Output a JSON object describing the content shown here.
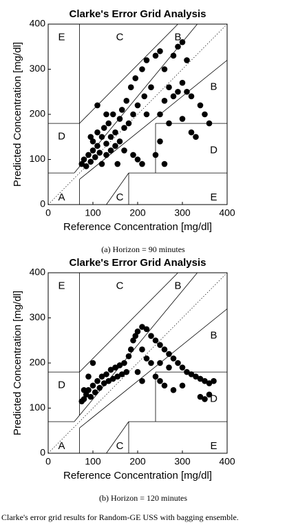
{
  "chart_data": [
    {
      "type": "scatter",
      "title": "Clarke's Error Grid Analysis",
      "x_label": "Reference Concentration [mg/dl]",
      "y_label": "Predicted Concentration [mg/dl]",
      "caption": "(a) Horizon = 90 minutes",
      "zone_labels": [
        "E",
        "C",
        "B",
        "B",
        "D",
        "D",
        "A",
        "C",
        "E"
      ],
      "xlim": [
        0,
        400
      ],
      "ylim": [
        0,
        400
      ],
      "xticks": [
        0,
        100,
        200,
        300,
        400
      ],
      "yticks": [
        0,
        100,
        200,
        300,
        400
      ],
      "color": "#000000",
      "x": [
        75,
        80,
        85,
        90,
        95,
        100,
        100,
        105,
        110,
        110,
        115,
        120,
        120,
        125,
        130,
        130,
        135,
        140,
        140,
        145,
        150,
        150,
        155,
        160,
        160,
        165,
        170,
        170,
        175,
        180,
        185,
        190,
        195,
        200,
        210,
        215,
        220,
        230,
        240,
        250,
        260,
        270,
        280,
        290,
        300,
        310,
        320,
        340,
        350,
        360,
        300,
        290,
        310,
        280,
        260,
        250,
        270,
        300,
        320,
        330,
        250,
        240,
        260,
        190,
        200,
        210,
        110,
        95,
        130,
        220
      ],
      "values": [
        90,
        100,
        85,
        110,
        95,
        120,
        140,
        105,
        130,
        160,
        115,
        150,
        90,
        170,
        135,
        110,
        180,
        150,
        120,
        200,
        160,
        130,
        90,
        190,
        140,
        210,
        170,
        120,
        230,
        180,
        260,
        200,
        280,
        220,
        300,
        240,
        320,
        260,
        330,
        340,
        300,
        260,
        240,
        250,
        270,
        250,
        240,
        220,
        200,
        180,
        360,
        350,
        320,
        330,
        230,
        200,
        180,
        190,
        160,
        150,
        140,
        110,
        90,
        110,
        100,
        90,
        220,
        150,
        200,
        200
      ]
    },
    {
      "type": "scatter",
      "title": "Clarke's Error Grid Analysis",
      "x_label": "Reference Concentration [mg/dl]",
      "y_label": "Predicted Concentration [mg/dl]",
      "caption": "(b) Horizon = 120 minutes",
      "zone_labels": [
        "E",
        "C",
        "B",
        "B",
        "D",
        "D",
        "A",
        "C",
        "E"
      ],
      "xlim": [
        0,
        400
      ],
      "ylim": [
        0,
        400
      ],
      "xticks": [
        0,
        100,
        200,
        300,
        400
      ],
      "yticks": [
        0,
        100,
        200,
        300,
        400
      ],
      "color": "#000000",
      "x": [
        75,
        80,
        85,
        90,
        95,
        100,
        105,
        110,
        115,
        120,
        125,
        130,
        135,
        140,
        145,
        150,
        155,
        160,
        165,
        170,
        175,
        180,
        185,
        190,
        195,
        200,
        210,
        220,
        230,
        240,
        250,
        260,
        270,
        280,
        290,
        300,
        310,
        320,
        330,
        340,
        350,
        360,
        370,
        360,
        350,
        340,
        300,
        280,
        260,
        250,
        240,
        230,
        220,
        210,
        250,
        270,
        100,
        90,
        80,
        200,
        210
      ],
      "values": [
        115,
        120,
        130,
        140,
        125,
        150,
        135,
        160,
        145,
        170,
        155,
        175,
        160,
        185,
        165,
        190,
        170,
        195,
        175,
        200,
        180,
        215,
        230,
        250,
        260,
        270,
        280,
        275,
        260,
        250,
        240,
        230,
        220,
        210,
        200,
        190,
        180,
        175,
        170,
        165,
        160,
        155,
        160,
        130,
        120,
        125,
        150,
        140,
        150,
        160,
        170,
        200,
        210,
        230,
        200,
        190,
        200,
        170,
        140,
        180,
        160
      ]
    }
  ],
  "figure_caption": "Clarke's error grid results for Random-GE USS with bagging ensemble."
}
